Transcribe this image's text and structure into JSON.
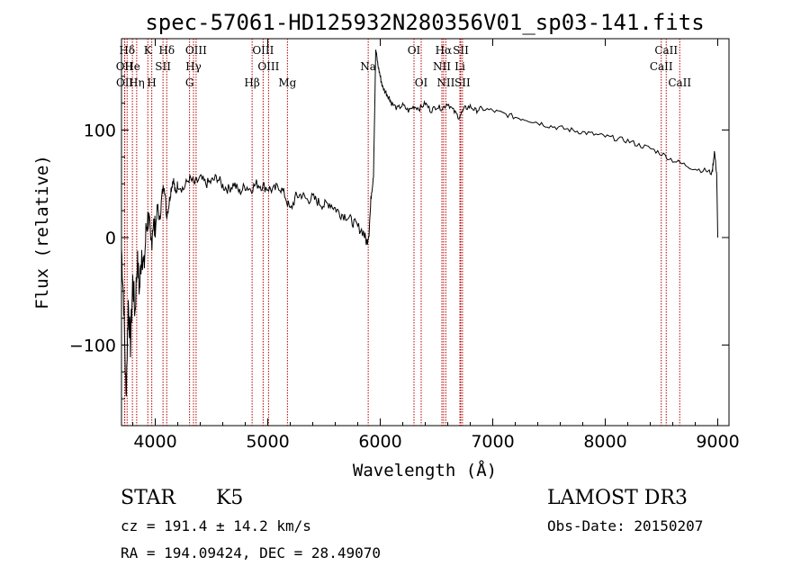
{
  "chart_data": {
    "type": "line",
    "title": "spec-57061-HD125932N280356V01_sp03-141.fits",
    "xlabel": "Wavelength (Å)",
    "ylabel": "Flux (relative)",
    "xlim": [
      3700,
      9100
    ],
    "ylim": [
      -175,
      185
    ],
    "x_ticks": [
      {
        "value": 4000,
        "label": "4000"
      },
      {
        "value": 5000,
        "label": "5000"
      },
      {
        "value": 6000,
        "label": "6000"
      },
      {
        "value": 7000,
        "label": "7000"
      },
      {
        "value": 8000,
        "label": "8000"
      },
      {
        "value": 9000,
        "label": "9000"
      }
    ],
    "y_ticks": [
      {
        "value": -100,
        "label": "−100"
      },
      {
        "value": 0,
        "label": "0"
      },
      {
        "value": 100,
        "label": "100"
      }
    ],
    "series": [
      {
        "name": "flux",
        "points": [
          [
            3700,
            -10
          ],
          [
            3720,
            -60
          ],
          [
            3740,
            -150
          ],
          [
            3760,
            -60
          ],
          [
            3780,
            -100
          ],
          [
            3800,
            -40
          ],
          [
            3820,
            -70
          ],
          [
            3840,
            -20
          ],
          [
            3860,
            -50
          ],
          [
            3880,
            -10
          ],
          [
            3900,
            -30
          ],
          [
            3920,
            10
          ],
          [
            3940,
            20
          ],
          [
            3960,
            -10
          ],
          [
            3980,
            15
          ],
          [
            4000,
            5
          ],
          [
            4020,
            30
          ],
          [
            4040,
            15
          ],
          [
            4060,
            40
          ],
          [
            4080,
            50
          ],
          [
            4100,
            20
          ],
          [
            4120,
            30
          ],
          [
            4140,
            45
          ],
          [
            4160,
            55
          ],
          [
            4180,
            40
          ],
          [
            4200,
            50
          ],
          [
            4250,
            45
          ],
          [
            4300,
            55
          ],
          [
            4350,
            50
          ],
          [
            4400,
            55
          ],
          [
            4450,
            50
          ],
          [
            4500,
            52
          ],
          [
            4550,
            56
          ],
          [
            4600,
            48
          ],
          [
            4650,
            45
          ],
          [
            4700,
            50
          ],
          [
            4750,
            42
          ],
          [
            4800,
            48
          ],
          [
            4850,
            45
          ],
          [
            4900,
            50
          ],
          [
            4950,
            48
          ],
          [
            5000,
            46
          ],
          [
            5050,
            44
          ],
          [
            5100,
            48
          ],
          [
            5150,
            40
          ],
          [
            5200,
            25
          ],
          [
            5250,
            38
          ],
          [
            5300,
            40
          ],
          [
            5350,
            35
          ],
          [
            5400,
            37
          ],
          [
            5450,
            33
          ],
          [
            5500,
            30
          ],
          [
            5550,
            32
          ],
          [
            5600,
            27
          ],
          [
            5650,
            22
          ],
          [
            5700,
            20
          ],
          [
            5750,
            15
          ],
          [
            5800,
            10
          ],
          [
            5850,
            5
          ],
          [
            5880,
            -5
          ],
          [
            5900,
            5
          ],
          [
            5920,
            40
          ],
          [
            5940,
            60
          ],
          [
            5960,
            175
          ],
          [
            5980,
            160
          ],
          [
            6000,
            150
          ],
          [
            6020,
            140
          ],
          [
            6050,
            135
          ],
          [
            6080,
            130
          ],
          [
            6100,
            125
          ],
          [
            6150,
            120
          ],
          [
            6200,
            123
          ],
          [
            6250,
            118
          ],
          [
            6300,
            122
          ],
          [
            6350,
            120
          ],
          [
            6400,
            125
          ],
          [
            6450,
            118
          ],
          [
            6500,
            122
          ],
          [
            6550,
            120
          ],
          [
            6600,
            125
          ],
          [
            6650,
            118
          ],
          [
            6700,
            112
          ],
          [
            6750,
            120
          ],
          [
            6800,
            122
          ],
          [
            6850,
            118
          ],
          [
            6900,
            120
          ],
          [
            7000,
            118
          ],
          [
            7100,
            115
          ],
          [
            7200,
            112
          ],
          [
            7300,
            110
          ],
          [
            7400,
            107
          ],
          [
            7500,
            104
          ],
          [
            7600,
            102
          ],
          [
            7700,
            100
          ],
          [
            7800,
            98
          ],
          [
            7900,
            96
          ],
          [
            8000,
            94
          ],
          [
            8100,
            92
          ],
          [
            8200,
            90
          ],
          [
            8300,
            86
          ],
          [
            8400,
            83
          ],
          [
            8500,
            78
          ],
          [
            8600,
            72
          ],
          [
            8700,
            68
          ],
          [
            8800,
            64
          ],
          [
            8900,
            62
          ],
          [
            8950,
            60
          ],
          [
            8970,
            80
          ],
          [
            8990,
            60
          ],
          [
            9000,
            0
          ]
        ]
      }
    ],
    "lines": [
      {
        "name": "Hδ",
        "x": 3750,
        "row": 1
      },
      {
        "name": "OII",
        "x": 3727,
        "row": 2
      },
      {
        "name": "OII",
        "x": 3729,
        "row": 3
      },
      {
        "name": "He",
        "x": 3797,
        "row": 2
      },
      {
        "name": "Hη",
        "x": 3835,
        "row": 3
      },
      {
        "name": "K",
        "x": 3934,
        "row": 1
      },
      {
        "name": "H",
        "x": 3969,
        "row": 3
      },
      {
        "name": "SII",
        "x": 4069,
        "row": 2
      },
      {
        "name": "Hδ",
        "x": 4102,
        "row": 1
      },
      {
        "name": "OIII",
        "x": 4363,
        "row": 1
      },
      {
        "name": "Hγ",
        "x": 4340,
        "row": 2
      },
      {
        "name": "G",
        "x": 4305,
        "row": 3
      },
      {
        "name": "OIII",
        "x": 4959,
        "row": 1
      },
      {
        "name": "OIII",
        "x": 5007,
        "row": 2
      },
      {
        "name": "Hβ",
        "x": 4861,
        "row": 3
      },
      {
        "name": "Mg",
        "x": 5175,
        "row": 3
      },
      {
        "name": "Na",
        "x": 5893,
        "row": 2
      },
      {
        "name": "OI",
        "x": 6300,
        "row": 1
      },
      {
        "name": "OI",
        "x": 6364,
        "row": 3
      },
      {
        "name": "Hα",
        "x": 6563,
        "row": 1
      },
      {
        "name": "SII",
        "x": 6716,
        "row": 1
      },
      {
        "name": "NII",
        "x": 6548,
        "row": 2
      },
      {
        "name": "Li",
        "x": 6708,
        "row": 2
      },
      {
        "name": "NII",
        "x": 6583,
        "row": 3
      },
      {
        "name": "SII",
        "x": 6731,
        "row": 3
      },
      {
        "name": "CaII",
        "x": 8542,
        "row": 1
      },
      {
        "name": "CaII",
        "x": 8498,
        "row": 2
      },
      {
        "name": "CaII",
        "x": 8662,
        "row": 3
      }
    ]
  },
  "info": {
    "class": "STAR",
    "subclass": "K5",
    "survey": "LAMOST DR3",
    "cz": "cz = 191.4 ± 14.2 km/s",
    "obs_date": "Obs-Date: 20150207",
    "coords": "RA = 194.09424, DEC =  28.49070"
  },
  "colors": {
    "line_marker": "#b00000",
    "spectrum": "#000000"
  }
}
